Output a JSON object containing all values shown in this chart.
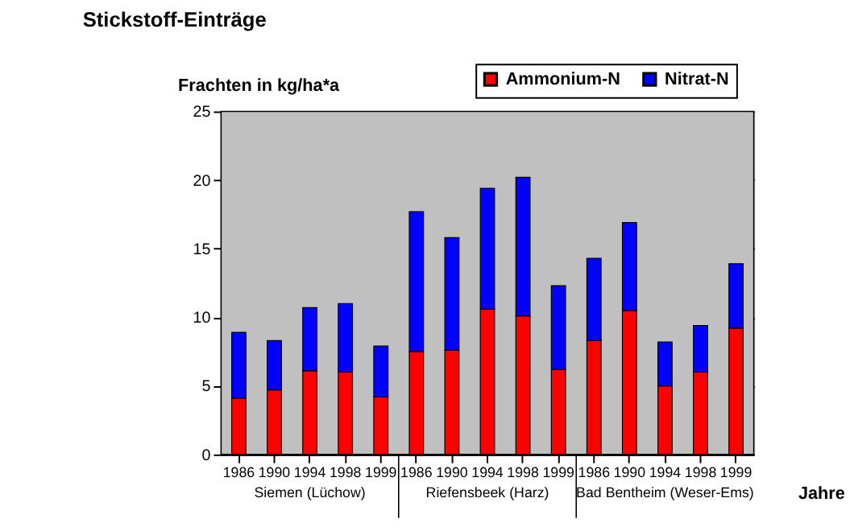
{
  "chart_data": {
    "type": "bar",
    "title": "Stickstoff-Einträge",
    "ylabel": "Frachten in kg/ha*a",
    "xlabel": "Jahre",
    "categories": [
      "1986",
      "1990",
      "1994",
      "1998",
      "1999",
      "1986",
      "1990",
      "1994",
      "1998",
      "1999",
      "1986",
      "1990",
      "1994",
      "1998",
      "1999"
    ],
    "stacked": true,
    "series": [
      {
        "name": "Ammonium-N",
        "color": "#ff0000",
        "values": [
          4.1,
          4.7,
          6.1,
          6.0,
          4.2,
          7.5,
          7.6,
          10.6,
          10.1,
          6.2,
          8.3,
          10.5,
          5.0,
          6.0,
          9.2
        ]
      },
      {
        "name": "Nitrat-N",
        "color": "#0000ff",
        "values": [
          4.8,
          3.6,
          4.6,
          5.0,
          3.7,
          10.2,
          8.2,
          8.8,
          10.1,
          6.1,
          6.0,
          6.4,
          3.2,
          3.4,
          4.7
        ]
      }
    ],
    "ylim": [
      0,
      25
    ],
    "yticks": [
      0,
      5,
      10,
      15,
      20,
      25
    ],
    "grid": "y",
    "legend": "top right",
    "annotations": [
      "Siemen (Lüchow)",
      "Riefensbeek (Harz)",
      "Bad Bentheim (Weser-Ems)"
    ]
  }
}
